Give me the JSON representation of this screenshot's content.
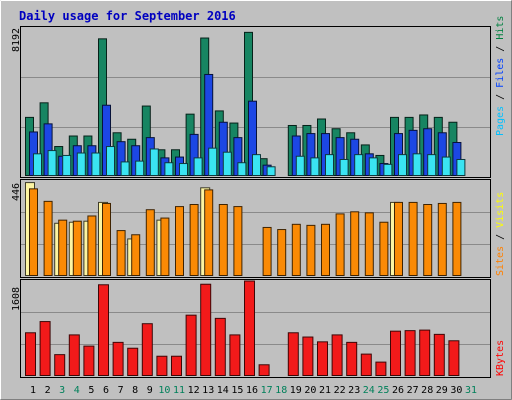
{
  "chart_data": {
    "type": "bar",
    "title": "Daily usage for September 2016",
    "categories": [
      "1",
      "2",
      "3",
      "4",
      "5",
      "6",
      "7",
      "8",
      "9",
      "10",
      "11",
      "12",
      "13",
      "14",
      "15",
      "16",
      "17",
      "18",
      "19",
      "20",
      "21",
      "22",
      "23",
      "24",
      "25",
      "26",
      "27",
      "28",
      "29",
      "30",
      "31"
    ],
    "weekend_days": [
      "3",
      "4",
      "10",
      "11",
      "17",
      "18",
      "24",
      "25",
      "31"
    ],
    "panels": [
      {
        "name": "hits-files-pages",
        "ymax_label": "8192",
        "ylim": [
          0,
          9200
        ],
        "legend": [
          {
            "text": "Pages",
            "color": "#00c0ff"
          },
          {
            "text": " / ",
            "color": "#000000"
          },
          {
            "text": "Files",
            "color": "#0040ff"
          },
          {
            "text": " / ",
            "color": "#000000"
          },
          {
            "text": "Hits",
            "color": "#008040"
          }
        ],
        "series": [
          {
            "name": "Hits",
            "color": "#178562",
            "values": [
              3650,
              4550,
              1850,
              2500,
              2500,
              8500,
              2700,
              2300,
              4350,
              1650,
              1650,
              3850,
              8550,
              4050,
              3300,
              8900,
              1100,
              0,
              3150,
              3150,
              3550,
              2950,
              2700,
              1950,
              1300,
              3650,
              3650,
              3800,
              3650,
              3350,
              0
            ]
          },
          {
            "name": "Files",
            "color": "#1c47e4",
            "values": [
              2750,
              3250,
              1250,
              1900,
              1900,
              4400,
              2150,
              1900,
              2400,
              1150,
              1200,
              2600,
              6300,
              3350,
              2400,
              4650,
              700,
              0,
              2500,
              2650,
              2650,
              2400,
              2300,
              1400,
              800,
              2650,
              2850,
              2950,
              2700,
              2100,
              0
            ]
          },
          {
            "name": "Pages",
            "color": "#3ae4f2",
            "values": [
              1400,
              1600,
              1300,
              1450,
              1450,
              1850,
              900,
              950,
              1700,
              850,
              800,
              1150,
              1750,
              1500,
              850,
              1350,
              600,
              0,
              1250,
              1150,
              1350,
              1050,
              1350,
              1150,
              750,
              1350,
              1400,
              1350,
              1200,
              1050,
              0
            ]
          }
        ]
      },
      {
        "name": "visits-sites",
        "ymax_label": "446",
        "ylim": [
          0,
          460
        ],
        "legend": [
          {
            "text": "Sites",
            "color": "#ff8000"
          },
          {
            "text": " / ",
            "color": "#000000"
          },
          {
            "text": "Visits",
            "color": "#ffff00"
          }
        ],
        "series": [
          {
            "name": "Visits",
            "color": "#fdf5a2",
            "values": [
              450,
              0,
              255,
              260,
              265,
              355,
              0,
              180,
              0,
              270,
              0,
              0,
              425,
              0,
              0,
              0,
              0,
              0,
              0,
              0,
              0,
              0,
              0,
              0,
              0,
              355,
              0,
              0,
              0,
              0,
              0
            ]
          },
          {
            "name": "Sites",
            "color": "#fa8a05",
            "values": [
              420,
              360,
              270,
              265,
              290,
              350,
              220,
              200,
              320,
              280,
              335,
              345,
              415,
              345,
              335,
              0,
              235,
              225,
              250,
              245,
              250,
              300,
              310,
              305,
              260,
              355,
              355,
              345,
              350,
              355,
              0
            ]
          }
        ]
      },
      {
        "name": "kbytes",
        "ymax_label": "1608",
        "ylim": [
          0,
          1800
        ],
        "legend": [
          {
            "text": "KBytes",
            "color": "#ff0000"
          }
        ],
        "series": [
          {
            "name": "KBytes",
            "color": "#f21a1a",
            "values": [
              820,
              1030,
              410,
              780,
              570,
              1720,
              640,
              530,
              990,
              380,
              380,
              1150,
              1730,
              1090,
              780,
              1790,
              220,
              0,
              820,
              740,
              650,
              780,
              640,
              420,
              270,
              850,
              860,
              870,
              790,
              670,
              0
            ]
          }
        ]
      }
    ]
  }
}
